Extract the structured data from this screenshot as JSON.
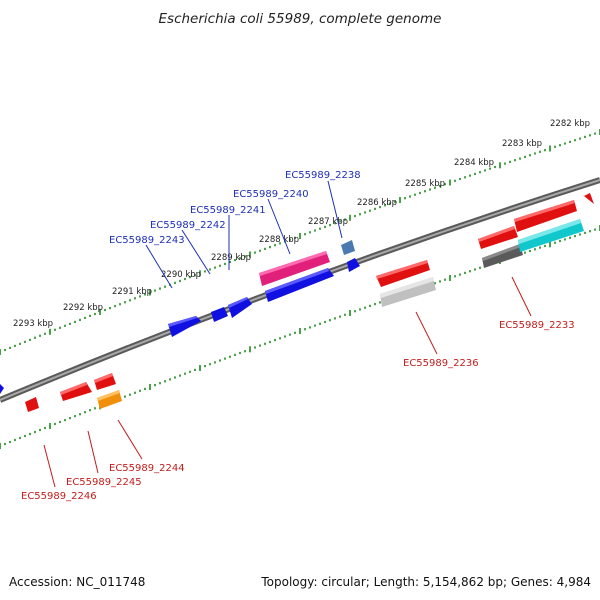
{
  "title": "Escherichia coli 55989, complete genome",
  "footer": {
    "accession": "Accession: NC_011748",
    "summary": "Topology: circular; Length: 5,154,862 bp; Genes: 4,984"
  },
  "kbp_labels": [
    "2282 kbp",
    "2283 kbp",
    "2284 kbp",
    "2285 kbp",
    "2286 kbp",
    "2287 kbp",
    "2288 kbp",
    "2289 kbp",
    "2290 kbp",
    "2291 kbp",
    "2292 kbp",
    "2293 kbp"
  ],
  "gene_labels_top": [
    "EC55989_2238",
    "EC55989_2240",
    "EC55989_2241",
    "EC55989_2242",
    "EC55989_2243"
  ],
  "gene_labels_bottom": [
    "EC55989_2233",
    "EC55989_2236",
    "EC55989_2244",
    "EC55989_2245",
    "EC55989_2246"
  ],
  "colors": {
    "backbone": "#7a7a7a",
    "forward_gene": "#1010e0",
    "reverse_gene": "#e01010",
    "pink_feature": "#e0207a",
    "cyan_feature": "#10c8cc",
    "gray_feature": "#5a5a5a",
    "light_gray_feature": "#c0c0c0",
    "orange_feature": "#f0900a",
    "steel_feature": "#4a7ab0",
    "top_label": "#1f2fb8",
    "bottom_label": "#c41c1c",
    "tick": "#1e8a1e"
  }
}
